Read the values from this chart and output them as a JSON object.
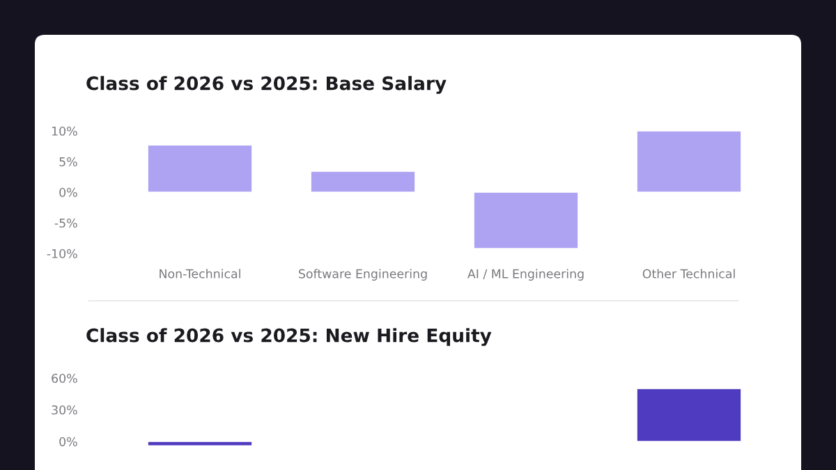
{
  "chart_data": [
    {
      "type": "bar",
      "title": "Class of 2026 vs 2025: Base Salary",
      "categories": [
        "Non-Technical",
        "Software Engineering",
        "AI / ML Engineering",
        "Other Technical"
      ],
      "values": [
        7.7,
        3.4,
        -9.2,
        10
      ],
      "color": "#ada3f2",
      "ylim": [
        -10,
        10
      ],
      "yticks": [
        {
          "value": 10,
          "label": "10%"
        },
        {
          "value": 5,
          "label": "5%"
        },
        {
          "value": 0,
          "label": "0%"
        },
        {
          "value": -5,
          "label": "-5%"
        },
        {
          "value": -10,
          "label": "-10%"
        }
      ],
      "grid": false,
      "legend": false
    },
    {
      "type": "bar",
      "title": "Class of 2026 vs 2025: New Hire Equity",
      "categories": [
        null,
        null,
        null,
        null
      ],
      "values": [
        -4,
        null,
        null,
        50
      ],
      "color": "#4f3bbf",
      "ylim": [
        -27,
        60
      ],
      "yticks": [
        {
          "value": 60,
          "label": "60%"
        },
        {
          "value": 30,
          "label": "30%"
        },
        {
          "value": 0,
          "label": "0%"
        }
      ],
      "tick_labels": "y",
      "grid": false,
      "legend": false
    }
  ]
}
